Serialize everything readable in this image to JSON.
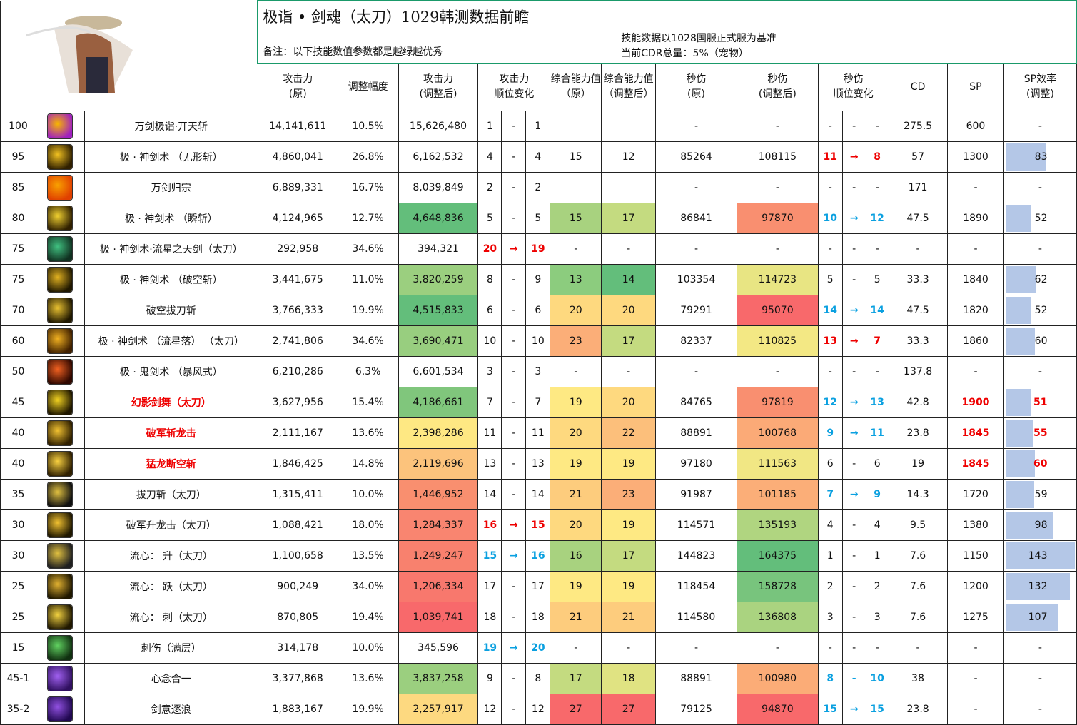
{
  "title": "极诣 • 剑魂（太刀）1029韩测数据前瞻",
  "note": "备注：以下技能数值参数都是越绿越优秀",
  "basis_line1": "技能数据以1028国服正式服为基准",
  "basis_line2": "当前CDR总量：5%（宠物）",
  "headers": [
    "攻击力\n(原)",
    "调整幅度",
    "攻击力\n(调整后)",
    "攻击力\n顺位变化",
    "综合能力值（原）",
    "综合能力值（调整后）",
    "秒伤\n(原)",
    "秒伤\n(调整后)",
    "秒伤\n顺位变化",
    "CD",
    "SP",
    "SP效率\n(调整)"
  ],
  "colors": {
    "bar": "#b4c7e7",
    "red": "#e00000",
    "blue": "#0aa0e0",
    "border": "#1a9a6a"
  },
  "rows": [
    {
      "lv": "100",
      "icon": "skill-icon-purple-burst",
      "ic": [
        "#f7b500",
        "#a020c0"
      ],
      "name": "万剑极诣·开天斩",
      "atk": "14,141,611",
      "pct": "10.5%",
      "adj": "15,626,480",
      "r": [
        "1",
        "-",
        "1"
      ],
      "co": "",
      "ca": "",
      "d": "-",
      "da": "-",
      "dr": [
        "-",
        "-",
        "-"
      ],
      "cd": "275.5",
      "sp": "600",
      "spe": "-"
    },
    {
      "lv": "95",
      "icon": "skill-icon-gold-star",
      "ic": [
        "#f0c020",
        "#302000"
      ],
      "name": "极 · 神剑术 （无形斩）",
      "atk": "4,860,041",
      "pct": "26.8%",
      "adj": "6,162,532",
      "r": [
        "4",
        "-",
        "4"
      ],
      "co": "15",
      "ca": "12",
      "d": "85264",
      "da": "108115",
      "dr": [
        "11",
        "→",
        "8"
      ],
      "drc": "red",
      "cd": "57",
      "sp": "1300",
      "spe": "83"
    },
    {
      "lv": "85",
      "icon": "skill-icon-orange-burst",
      "ic": [
        "#f8a000",
        "#e04000"
      ],
      "name": "万剑归宗",
      "atk": "6,889,331",
      "pct": "16.7%",
      "adj": "8,039,849",
      "r": [
        "2",
        "-",
        "2"
      ],
      "co": "",
      "ca": "",
      "d": "-",
      "da": "-",
      "dr": [
        "-",
        "-",
        "-"
      ],
      "cd": "171",
      "sp": "-",
      "spe": "-"
    },
    {
      "lv": "80",
      "icon": "skill-icon-gold-sword",
      "ic": [
        "#f0d030",
        "#302000"
      ],
      "name": "极 · 神剑术 （瞬斩）",
      "atk": "4,124,965",
      "pct": "12.7%",
      "adj": "4,648,836",
      "adjc": "#63be7b",
      "r": [
        "5",
        "-",
        "5"
      ],
      "co": "15",
      "coc": "#a8d27f",
      "ca": "17",
      "cac": "#c4db80",
      "d": "86841",
      "da": "97870",
      "dac": "#f98f70",
      "dr": [
        "10",
        "→",
        "12"
      ],
      "drc": "blue",
      "cd": "47.5",
      "sp": "1890",
      "spe": "52"
    },
    {
      "lv": "75",
      "icon": "skill-icon-green-glyph",
      "ic": [
        "#40c080",
        "#103020"
      ],
      "name": "极 · 神剑术·流星之天剑（太刀）",
      "atk": "292,958",
      "pct": "34.6%",
      "adj": "394,321",
      "r": [
        "20",
        "→",
        "19"
      ],
      "rc": "red",
      "co": "-",
      "ca": "-",
      "d": "-",
      "da": "-",
      "dr": [
        "-",
        "-",
        "-"
      ],
      "cd": "-",
      "sp": "-",
      "spe": "-"
    },
    {
      "lv": "75",
      "icon": "skill-icon-gold-ring",
      "ic": [
        "#e0b020",
        "#201800"
      ],
      "name": "极 · 神剑术 （破空斩）",
      "atk": "3,441,675",
      "pct": "11.0%",
      "adj": "3,820,259",
      "adjc": "#9bcf7f",
      "r": [
        "8",
        "-",
        "9"
      ],
      "co": "13",
      "coc": "#8ccc7e",
      "ca": "14",
      "cac": "#63be7b",
      "d": "103354",
      "da": "114723",
      "dac": "#e8e583",
      "dr": [
        "5",
        "-",
        "5"
      ],
      "cd": "33.3",
      "sp": "1840",
      "spe": "62"
    },
    {
      "lv": "70",
      "icon": "skill-icon-gold-swirl",
      "ic": [
        "#e8c030",
        "#201800"
      ],
      "name": "破空拔刀斩",
      "atk": "3,766,333",
      "pct": "19.9%",
      "adj": "4,515,833",
      "adjc": "#63be7b",
      "r": [
        "6",
        "-",
        "6"
      ],
      "co": "20",
      "coc": "#fed97f",
      "ca": "20",
      "cac": "#fed97f",
      "d": "79291",
      "da": "95070",
      "dac": "#f8696b",
      "dr": [
        "14",
        "→",
        "14"
      ],
      "drc": "blue",
      "cd": "47.5",
      "sp": "1820",
      "spe": "52"
    },
    {
      "lv": "60",
      "icon": "skill-icon-meteor",
      "ic": [
        "#f0b020",
        "#402000"
      ],
      "name": "极 · 神剑术 （流星落） （太刀）",
      "atk": "2,741,806",
      "pct": "34.6%",
      "adj": "3,690,471",
      "adjc": "#98ce7f",
      "r": [
        "10",
        "-",
        "10"
      ],
      "co": "23",
      "coc": "#fbae78",
      "ca": "17",
      "cac": "#c4db80",
      "d": "82337",
      "da": "110825",
      "dac": "#f3e884",
      "dr": [
        "13",
        "→",
        "7"
      ],
      "drc": "red",
      "cd": "33.3",
      "sp": "1860",
      "spe": "60"
    },
    {
      "lv": "50",
      "icon": "skill-icon-ghost-fire",
      "ic": [
        "#f06020",
        "#300800"
      ],
      "name": "极 · 鬼剑术 （暴风式）",
      "atk": "6,210,286",
      "pct": "6.3%",
      "adj": "6,601,534",
      "r": [
        "3",
        "-",
        "3"
      ],
      "co": "-",
      "ca": "-",
      "d": "-",
      "da": "-",
      "dr": [
        "-",
        "-",
        "-"
      ],
      "cd": "137.8",
      "sp": "-",
      "spe": "-"
    },
    {
      "lv": "45",
      "icon": "skill-icon-phantom",
      "ic": [
        "#f0d020",
        "#201800"
      ],
      "name": "幻影剑舞（太刀）",
      "nred": true,
      "atk": "3,627,956",
      "pct": "15.4%",
      "adj": "4,186,661",
      "adjc": "#80c67c",
      "r": [
        "7",
        "-",
        "7"
      ],
      "co": "19",
      "coc": "#fee983",
      "ca": "20",
      "cac": "#fed97f",
      "d": "84765",
      "da": "97819",
      "dac": "#f98f70",
      "dr": [
        "12",
        "→",
        "13"
      ],
      "drc": "blue",
      "cd": "42.8",
      "sp": "1900",
      "spred": true,
      "spe": "51",
      "spered": true
    },
    {
      "lv": "40",
      "icon": "skill-icon-dragon",
      "ic": [
        "#f0c030",
        "#302000"
      ],
      "name": "破军斩龙击",
      "nred": true,
      "atk": "2,111,167",
      "pct": "13.6%",
      "adj": "2,398,286",
      "adjc": "#fee883",
      "r": [
        "11",
        "-",
        "11"
      ],
      "co": "20",
      "coc": "#fed97f",
      "ca": "22",
      "cac": "#fcbf7b",
      "d": "88891",
      "da": "100768",
      "dac": "#fbaa77",
      "dr": [
        "9",
        "→",
        "11"
      ],
      "drc": "blue",
      "cd": "23.8",
      "sp": "1845",
      "spred": true,
      "spe": "55",
      "spered": true
    },
    {
      "lv": "40",
      "icon": "skill-icon-dragon-slash",
      "ic": [
        "#f8d040",
        "#302000"
      ],
      "name": "猛龙断空斩",
      "nred": true,
      "atk": "1,846,425",
      "pct": "14.8%",
      "adj": "2,119,696",
      "adjc": "#fcc37c",
      "r": [
        "13",
        "-",
        "13"
      ],
      "co": "19",
      "coc": "#fee983",
      "ca": "19",
      "cac": "#fee983",
      "d": "97180",
      "da": "111563",
      "dac": "#f1e784",
      "dr": [
        "6",
        "-",
        "6"
      ],
      "cd": "19",
      "sp": "1845",
      "spred": true,
      "spe": "60",
      "spered": true
    },
    {
      "lv": "35",
      "icon": "skill-icon-draw-slash",
      "ic": [
        "#e0c040",
        "#101010"
      ],
      "name": "拔刀斩（太刀）",
      "atk": "1,315,411",
      "pct": "10.0%",
      "adj": "1,446,952",
      "adjc": "#f98f6f",
      "r": [
        "14",
        "-",
        "14"
      ],
      "co": "21",
      "coc": "#fdcc7d",
      "ca": "23",
      "cac": "#fbae78",
      "d": "91987",
      "da": "101185",
      "dac": "#fbae78",
      "dr": [
        "7",
        "→",
        "9"
      ],
      "drc": "blue",
      "cd": "14.3",
      "sp": "1720",
      "spe": "59"
    },
    {
      "lv": "30",
      "icon": "skill-icon-rising-dragon",
      "ic": [
        "#f0c030",
        "#201800"
      ],
      "name": "破军升龙击（太刀）",
      "atk": "1,088,421",
      "pct": "18.0%",
      "adj": "1,284,337",
      "adjc": "#f98570",
      "r": [
        "16",
        "→",
        "15"
      ],
      "rc": "red",
      "co": "20",
      "coc": "#fed97f",
      "ca": "19",
      "cac": "#fee983",
      "d": "114571",
      "da": "135193",
      "dac": "#b0d580",
      "dr": [
        "4",
        "-",
        "4"
      ],
      "cd": "9.5",
      "sp": "1380",
      "spe": "98"
    },
    {
      "lv": "30",
      "icon": "skill-icon-flow-rise",
      "ic": [
        "#e0c040",
        "#202020"
      ],
      "name": "流心： 升（太刀）",
      "atk": "1,100,658",
      "pct": "13.5%",
      "adj": "1,249,247",
      "adjc": "#f8816e",
      "r": [
        "15",
        "→",
        "16"
      ],
      "rc": "blue",
      "co": "16",
      "coc": "#a8d27f",
      "ca": "17",
      "cac": "#c4db80",
      "d": "144823",
      "da": "164375",
      "dac": "#63be7b",
      "dr": [
        "1",
        "-",
        "1"
      ],
      "cd": "7.6",
      "sp": "1150",
      "spe": "143"
    },
    {
      "lv": "25",
      "icon": "skill-icon-flow-leap",
      "ic": [
        "#e0b030",
        "#201800"
      ],
      "name": "流心： 跃（太刀）",
      "atk": "900,249",
      "pct": "34.0%",
      "adj": "1,206,334",
      "adjc": "#f8786d",
      "r": [
        "17",
        "-",
        "17"
      ],
      "co": "19",
      "coc": "#fee983",
      "ca": "19",
      "cac": "#fee983",
      "d": "118454",
      "da": "158728",
      "dac": "#78c47d",
      "dr": [
        "2",
        "-",
        "2"
      ],
      "cd": "7.6",
      "sp": "1200",
      "spe": "132"
    },
    {
      "lv": "25",
      "icon": "skill-icon-flow-thrust",
      "ic": [
        "#f0d040",
        "#201800"
      ],
      "name": "流心： 刺（太刀）",
      "atk": "870,805",
      "pct": "19.4%",
      "adj": "1,039,741",
      "adjc": "#f8696b",
      "r": [
        "18",
        "-",
        "18"
      ],
      "co": "21",
      "coc": "#fdcc7d",
      "ca": "21",
      "cac": "#fdcc7d",
      "d": "114580",
      "da": "136808",
      "dac": "#aad380",
      "dr": [
        "3",
        "-",
        "3"
      ],
      "cd": "7.6",
      "sp": "1275",
      "spe": "107"
    },
    {
      "lv": "15",
      "icon": "skill-icon-green-blade",
      "ic": [
        "#60d060",
        "#103010"
      ],
      "name": "刺伤（满层）",
      "atk": "314,178",
      "pct": "10.0%",
      "adj": "345,596",
      "r": [
        "19",
        "→",
        "20"
      ],
      "rc": "blue",
      "co": "-",
      "ca": "-",
      "d": "-",
      "da": "-",
      "dr": [
        "-",
        "-",
        "-"
      ],
      "cd": "-",
      "sp": "-",
      "spe": "-"
    },
    {
      "lv": "45-1",
      "icon": "skill-icon-purple-mind",
      "ic": [
        "#a060f0",
        "#301060"
      ],
      "name": "心念合一",
      "atk": "3,377,868",
      "pct": "13.6%",
      "adj": "3,837,258",
      "adjc": "#9bcf7f",
      "r": [
        "9",
        "-",
        "8"
      ],
      "co": "17",
      "coc": "#c4db80",
      "ca": "18",
      "cac": "#e0e382",
      "d": "88891",
      "da": "100980",
      "dac": "#fbac77",
      "dr": [
        "8",
        "-",
        "10"
      ],
      "drc": "blue",
      "cd": "38",
      "sp": "-",
      "spe": "-"
    },
    {
      "lv": "35-2",
      "icon": "skill-icon-purple-wave",
      "ic": [
        "#9050e0",
        "#200850"
      ],
      "name": "剑意逐浪",
      "atk": "1,883,167",
      "pct": "19.9%",
      "adj": "2,257,917",
      "adjc": "#fdd980",
      "r": [
        "12",
        "-",
        "12"
      ],
      "co": "27",
      "coc": "#f8696b",
      "ca": "27",
      "cac": "#f8696b",
      "d": "79125",
      "da": "94870",
      "dac": "#f8696b",
      "dr": [
        "15",
        "→",
        "15"
      ],
      "drc": "blue",
      "cd": "23.8",
      "sp": "-",
      "spe": "-"
    }
  ]
}
